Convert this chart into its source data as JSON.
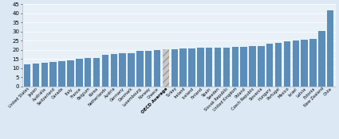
{
  "categories": [
    "United States",
    "Japan",
    "Australia",
    "Switzerland",
    "Canada",
    "Italy",
    "France",
    "Belgium",
    "Korea",
    "Netherlands",
    "Austria",
    "Germany",
    "Denmark",
    "Luxembourg",
    "Norway",
    "Greece",
    "OECD Average",
    "Turkey",
    "Ireland",
    "Iceland",
    "Finland",
    "Spain",
    "Sweden",
    "Slovak Republic",
    "United Kingdom",
    "Poland",
    "Czech Republic",
    "Slovenia",
    "Hungary",
    "Portugal",
    "Mexico",
    "Israel",
    "Latvia",
    "Estonia",
    "New Zealand",
    "Chile"
  ],
  "values": [
    11.8,
    12.3,
    12.7,
    13.1,
    13.8,
    14.0,
    15.1,
    15.5,
    15.6,
    17.4,
    17.5,
    18.0,
    18.3,
    19.2,
    19.6,
    19.8,
    20.2,
    20.3,
    20.6,
    20.9,
    21.0,
    21.1,
    21.2,
    21.3,
    21.4,
    21.5,
    22.1,
    22.2,
    23.4,
    23.9,
    24.5,
    25.1,
    25.5,
    25.8,
    30.1,
    41.5
  ],
  "oecd_avg_label": "OECD Average",
  "bar_color": "#5b8db8",
  "oecd_color": "#c8c8c8",
  "background_color": "#dce9f5",
  "plot_bg": "#e8f1f8",
  "grid_color": "#ffffff",
  "ylim": [
    0,
    45
  ],
  "yticks": [
    0,
    5,
    10,
    15,
    20,
    25,
    30,
    35,
    40,
    45
  ],
  "tick_fontsize": 5.0,
  "label_fontsize": 3.6
}
